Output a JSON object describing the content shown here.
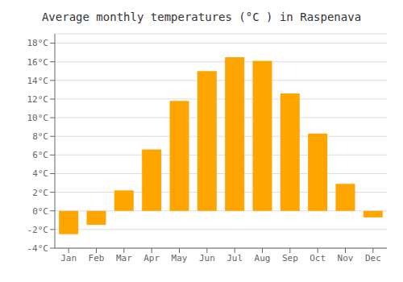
{
  "chart_data": {
    "type": "bar",
    "title": "Average monthly temperatures (°C ) in Raspenava",
    "categories": [
      "Jan",
      "Feb",
      "Mar",
      "Apr",
      "May",
      "Jun",
      "Jul",
      "Aug",
      "Sep",
      "Oct",
      "Nov",
      "Dec"
    ],
    "values": [
      -2.5,
      -1.5,
      2.2,
      6.6,
      11.8,
      15.0,
      16.5,
      16.1,
      12.6,
      8.3,
      2.9,
      -0.7
    ],
    "color": "#FFA500",
    "ylim": [
      -4,
      19
    ],
    "yticks": [
      {
        "value": -4,
        "label": "-4°C"
      },
      {
        "value": -2,
        "label": "-2°C"
      },
      {
        "value": 0,
        "label": "0°C"
      },
      {
        "value": 2,
        "label": "2°C"
      },
      {
        "value": 4,
        "label": "4°C"
      },
      {
        "value": 6,
        "label": "6°C"
      },
      {
        "value": 8,
        "label": "8°C"
      },
      {
        "value": 10,
        "label": "10°C"
      },
      {
        "value": 12,
        "label": "12°C"
      },
      {
        "value": 14,
        "label": "14°C"
      },
      {
        "value": 16,
        "label": "16°C"
      },
      {
        "value": 18,
        "label": "18°C"
      }
    ],
    "grid": true
  }
}
